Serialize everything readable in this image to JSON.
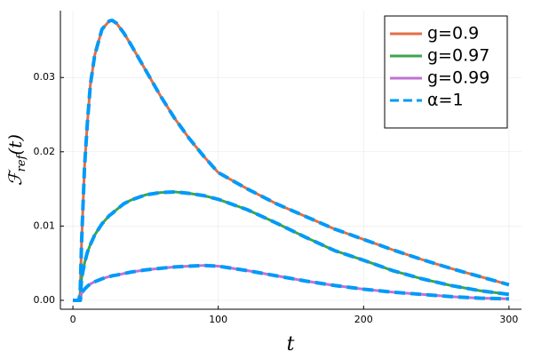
{
  "chart_data": {
    "type": "line",
    "xlabel": "t",
    "ylabel": {
      "main": "ℱ",
      "sub": "ref",
      "tail": "(t)"
    },
    "x": [
      0,
      4,
      5,
      6,
      8,
      10,
      12,
      15,
      20,
      25,
      27,
      30,
      35,
      40,
      50,
      60,
      70,
      80,
      90,
      100,
      120,
      140,
      160,
      180,
      200,
      220,
      240,
      260,
      280,
      300
    ],
    "series": [
      {
        "name": "g=0.9",
        "color": "#e26f46",
        "values": [
          0,
          0,
          0.001,
          0.008,
          0.018,
          0.024,
          0.029,
          0.033,
          0.0365,
          0.0376,
          0.0377,
          0.0373,
          0.036,
          0.0344,
          0.031,
          0.0276,
          0.0245,
          0.0218,
          0.0194,
          0.0172,
          0.015,
          0.013,
          0.0113,
          0.0096,
          0.0082,
          0.0068,
          0.0055,
          0.0043,
          0.0032,
          0.0021
        ]
      },
      {
        "name": "g=0.97",
        "color": "#3da44d",
        "values": [
          0,
          0,
          0,
          0.003,
          0.005,
          0.0065,
          0.0075,
          0.0088,
          0.0103,
          0.0114,
          0.0117,
          0.0122,
          0.013,
          0.0135,
          0.0142,
          0.0145,
          0.0146,
          0.0144,
          0.0141,
          0.0136,
          0.0122,
          0.0104,
          0.0085,
          0.0067,
          0.0054,
          0.004,
          0.0029,
          0.002,
          0.0013,
          0.0008
        ]
      },
      {
        "name": "g=0.99",
        "color": "#c271d2",
        "values": [
          0,
          0,
          0,
          0.001,
          0.0015,
          0.0019,
          0.0022,
          0.0025,
          0.0029,
          0.0032,
          0.0033,
          0.0034,
          0.0036,
          0.0038,
          0.0041,
          0.0043,
          0.0045,
          0.0046,
          0.0047,
          0.0046,
          0.004,
          0.0033,
          0.0026,
          0.002,
          0.0015,
          0.0011,
          0.0008,
          0.0005,
          0.0003,
          0.0002
        ]
      },
      {
        "name": "α=1",
        "color": "#009af9",
        "dashed": true,
        "values": [
          [
            0,
            0,
            0.001,
            0.008,
            0.018,
            0.024,
            0.029,
            0.033,
            0.0365,
            0.0376,
            0.0377,
            0.0373,
            0.036,
            0.0344,
            0.031,
            0.0276,
            0.0245,
            0.0218,
            0.0194,
            0.0172,
            0.015,
            0.013,
            0.0113,
            0.0096,
            0.0082,
            0.0068,
            0.0055,
            0.0043,
            0.0032,
            0.0021
          ],
          [
            0,
            0,
            0,
            0.003,
            0.005,
            0.0065,
            0.0075,
            0.0088,
            0.0103,
            0.0114,
            0.0117,
            0.0122,
            0.013,
            0.0135,
            0.0142,
            0.0145,
            0.0146,
            0.0144,
            0.0141,
            0.0136,
            0.0122,
            0.0104,
            0.0085,
            0.0067,
            0.0054,
            0.004,
            0.0029,
            0.002,
            0.0013,
            0.0008
          ],
          [
            0,
            0,
            0,
            0.001,
            0.0015,
            0.0019,
            0.0022,
            0.0025,
            0.0029,
            0.0032,
            0.0033,
            0.0034,
            0.0036,
            0.0038,
            0.0041,
            0.0043,
            0.0045,
            0.0046,
            0.0047,
            0.0046,
            0.004,
            0.0033,
            0.0026,
            0.002,
            0.0015,
            0.0011,
            0.0008,
            0.0005,
            0.0003,
            0.0002
          ]
        ]
      }
    ],
    "xlim": [
      -8.6,
      308.6
    ],
    "ylim": [
      -0.0012,
      0.039
    ],
    "xticks": [
      0,
      100,
      200,
      300
    ],
    "yticks": [
      {
        "value": 0,
        "label": "0.00"
      },
      {
        "value": 0.01,
        "label": "0.01"
      },
      {
        "value": 0.02,
        "label": "0.02"
      },
      {
        "value": 0.03,
        "label": "0.03"
      }
    ],
    "grid": true,
    "legend": "top-right"
  }
}
